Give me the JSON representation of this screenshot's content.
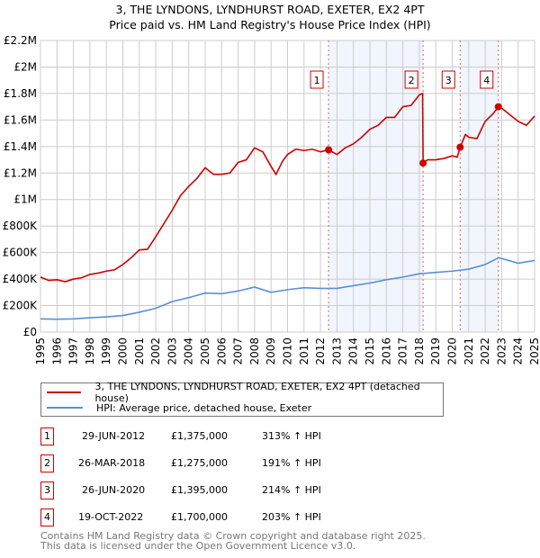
{
  "title": "3, THE LYNDONS, LYNDHURST ROAD, EXETER, EX2 4PT",
  "subtitle": "Price paid vs. HM Land Registry's House Price Index (HPI)",
  "chart_data": {
    "type": "line",
    "ylim": [
      0,
      2200000
    ],
    "xlim": [
      1995,
      2025
    ],
    "y_ticks": [
      {
        "v": 0,
        "label": "£0"
      },
      {
        "v": 200000,
        "label": "£200K"
      },
      {
        "v": 400000,
        "label": "£400K"
      },
      {
        "v": 600000,
        "label": "£600K"
      },
      {
        "v": 800000,
        "label": "£800K"
      },
      {
        "v": 1000000,
        "label": "£1M"
      },
      {
        "v": 1200000,
        "label": "£1.2M"
      },
      {
        "v": 1400000,
        "label": "£1.4M"
      },
      {
        "v": 1600000,
        "label": "£1.6M"
      },
      {
        "v": 1800000,
        "label": "£1.8M"
      },
      {
        "v": 2000000,
        "label": "£2M"
      },
      {
        "v": 2200000,
        "label": "£2.2M"
      }
    ],
    "x_ticks": [
      "1995",
      "1996",
      "1997",
      "1998",
      "1999",
      "2000",
      "2001",
      "2002",
      "2003",
      "2004",
      "2005",
      "2006",
      "2007",
      "2008",
      "2009",
      "2010",
      "2011",
      "2012",
      "2013",
      "2014",
      "2015",
      "2016",
      "2017",
      "2018",
      "2019",
      "2020",
      "2021",
      "2022",
      "2023",
      "2024",
      "2025"
    ],
    "grid": true,
    "series": [
      {
        "name": "3, THE LYNDONS, LYNDHURST ROAD, EXETER, EX2 4PT (detached house)",
        "color": "#cc0000",
        "x": [
          1995,
          1995.5,
          1996,
          1996.5,
          1997,
          1997.5,
          1998,
          1998.5,
          1999,
          1999.5,
          2000,
          2000.5,
          2001,
          2001.5,
          2002,
          2002.5,
          2003,
          2003.5,
          2004,
          2004.5,
          2005,
          2005.5,
          2006,
          2006.5,
          2007,
          2007.5,
          2008,
          2008.5,
          2009,
          2009.3,
          2009.7,
          2010,
          2010.5,
          2011,
          2011.5,
          2012,
          2012.49,
          2013,
          2013.5,
          2014,
          2014.5,
          2015,
          2015.5,
          2016,
          2016.5,
          2017,
          2017.5,
          2018,
          2018.2,
          2018.23,
          2018.5,
          2019,
          2019.5,
          2020,
          2020.3,
          2020.48,
          2020.8,
          2021,
          2021.5,
          2022,
          2022.5,
          2022.8,
          2023,
          2023.5,
          2024,
          2024.5,
          2025
        ],
        "y": [
          415000,
          390000,
          395000,
          380000,
          400000,
          410000,
          435000,
          445000,
          460000,
          470000,
          510000,
          560000,
          620000,
          625000,
          720000,
          820000,
          920000,
          1030000,
          1100000,
          1160000,
          1240000,
          1190000,
          1190000,
          1200000,
          1280000,
          1300000,
          1390000,
          1360000,
          1250000,
          1190000,
          1290000,
          1340000,
          1380000,
          1370000,
          1380000,
          1360000,
          1375000,
          1340000,
          1390000,
          1420000,
          1470000,
          1530000,
          1560000,
          1620000,
          1620000,
          1700000,
          1710000,
          1790000,
          1800000,
          1275000,
          1300000,
          1300000,
          1310000,
          1330000,
          1320000,
          1395000,
          1490000,
          1470000,
          1460000,
          1590000,
          1650000,
          1700000,
          1690000,
          1640000,
          1590000,
          1560000,
          1630000
        ]
      },
      {
        "name": "HPI: Average price, detached house, Exeter",
        "color": "#5b8fd4",
        "x": [
          1995,
          1996,
          1997,
          1998,
          1999,
          2000,
          2001,
          2002,
          2003,
          2004,
          2005,
          2006,
          2007,
          2008,
          2009,
          2010,
          2011,
          2012,
          2013,
          2014,
          2015,
          2016,
          2017,
          2018,
          2019,
          2020,
          2021,
          2022,
          2022.8,
          2023,
          2024,
          2025
        ],
        "y": [
          100000,
          97000,
          100000,
          108000,
          115000,
          125000,
          150000,
          180000,
          230000,
          260000,
          295000,
          290000,
          310000,
          340000,
          300000,
          320000,
          335000,
          330000,
          330000,
          350000,
          370000,
          395000,
          415000,
          440000,
          450000,
          460000,
          475000,
          510000,
          560000,
          555000,
          520000,
          540000
        ]
      }
    ],
    "shaded_ranges": [
      [
        2012.49,
        2018.23
      ],
      [
        2020.48,
        2022.8
      ]
    ],
    "sales": [
      {
        "id": "1",
        "x": 2012.49,
        "y": 1375000,
        "date": "29-JUN-2012",
        "price": "£1,375,000",
        "hpi": "313% ↑ HPI"
      },
      {
        "id": "2",
        "x": 2018.23,
        "y": 1275000,
        "date": "26-MAR-2018",
        "price": "£1,275,000",
        "hpi": "191% ↑ HPI"
      },
      {
        "id": "3",
        "x": 2020.48,
        "y": 1395000,
        "date": "26-JUN-2020",
        "price": "£1,395,000",
        "hpi": "214% ↑ HPI"
      },
      {
        "id": "4",
        "x": 2022.8,
        "y": 1700000,
        "date": "19-OCT-2022",
        "price": "£1,700,000",
        "hpi": "203% ↑ HPI"
      }
    ]
  },
  "legend": {
    "property": "3, THE LYNDONS, LYNDHURST ROAD, EXETER, EX2 4PT (detached house)",
    "hpi": "HPI: Average price, detached house, Exeter"
  },
  "footer": {
    "line1": "Contains HM Land Registry data © Crown copyright and database right 2025.",
    "line2": "This data is licensed under the Open Government Licence v3.0."
  }
}
